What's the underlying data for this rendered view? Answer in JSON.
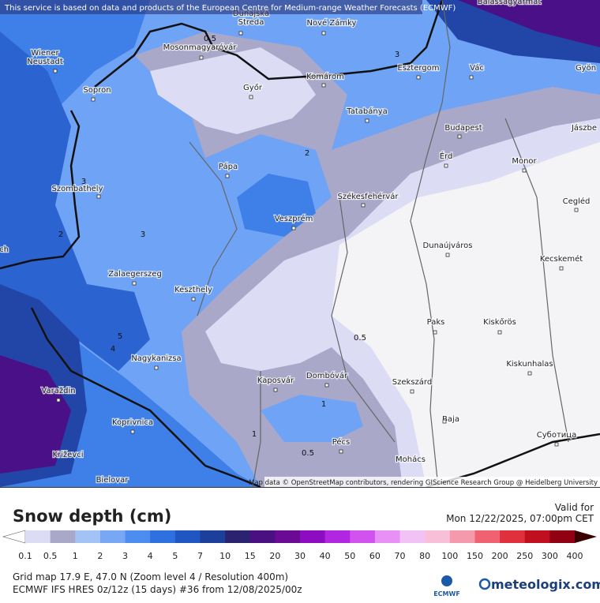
{
  "header": {
    "notice": "This service is based on data and products of the European Centre for Medium-range Weather Forecasts (ECMWF)"
  },
  "map": {
    "cities": [
      {
        "lines": [
          "Wiener",
          "Neustadt"
        ]
      },
      {
        "lines": [
          "Dunajská",
          "Streda"
        ]
      },
      {
        "lines": [
          "Nové Zámky"
        ]
      },
      {
        "lines": [
          "Balassagyarmat"
        ]
      },
      {
        "lines": [
          "Mosonmagyaróvár"
        ]
      },
      {
        "lines": [
          "Komárom"
        ]
      },
      {
        "lines": [
          "Esztergom"
        ]
      },
      {
        "lines": [
          "Vác"
        ]
      },
      {
        "lines": [
          "Gyön"
        ]
      },
      {
        "lines": [
          "Sopron"
        ]
      },
      {
        "lines": [
          "Győr"
        ]
      },
      {
        "lines": [
          "Tatabánya"
        ]
      },
      {
        "lines": [
          "Budapest"
        ]
      },
      {
        "lines": [
          "Jászbe"
        ]
      },
      {
        "lines": [
          "Érd"
        ]
      },
      {
        "lines": [
          "Monor"
        ]
      },
      {
        "lines": [
          "Pápa"
        ]
      },
      {
        "lines": [
          "Szombathely"
        ]
      },
      {
        "lines": [
          "Székesfehérvár"
        ]
      },
      {
        "lines": [
          "Cegléd"
        ]
      },
      {
        "lines": [
          "Veszprém"
        ]
      },
      {
        "lines": [
          "Dunaújváros"
        ]
      },
      {
        "lines": [
          "Kecskemét"
        ]
      },
      {
        "lines": [
          "Zalaegerszeg"
        ]
      },
      {
        "lines": [
          "Keszthely"
        ]
      },
      {
        "lines": [
          "Paks"
        ]
      },
      {
        "lines": [
          "Kiskőrös"
        ]
      },
      {
        "lines": [
          "Nagykanizsa"
        ]
      },
      {
        "lines": [
          "Kiskunhalas"
        ]
      },
      {
        "lines": [
          "Kaposvár"
        ]
      },
      {
        "lines": [
          "Dombóvár"
        ]
      },
      {
        "lines": [
          "Szekszárd"
        ]
      },
      {
        "lines": [
          "Varaždin"
        ]
      },
      {
        "lines": [
          "Baja"
        ]
      },
      {
        "lines": [
          "Koprivnica"
        ]
      },
      {
        "lines": [
          "Pécs"
        ]
      },
      {
        "lines": [
          "Суботица"
        ]
      },
      {
        "lines": [
          "Križevci"
        ]
      },
      {
        "lines": [
          "Mohács"
        ]
      },
      {
        "lines": [
          "Bielovar"
        ]
      },
      {
        "lines": [
          "ch"
        ]
      }
    ],
    "contour_labels": [
      "0.5",
      "3",
      "2",
      "3",
      "2",
      "3",
      "5",
      "4",
      "0.5",
      "1",
      "1",
      "0.5"
    ],
    "attribution": "Map data © OpenStreetMap contributors, rendering GIScience Research Group @ Heidelberg University"
  },
  "legend": {
    "title": "Snow depth (cm)",
    "valid_label": "Valid for",
    "valid_time": "Mon 12/22/2025, 07:00pm CET",
    "levels": [
      "0.1",
      "0.5",
      "1",
      "2",
      "3",
      "4",
      "5",
      "7",
      "10",
      "15",
      "20",
      "30",
      "40",
      "50",
      "60",
      "70",
      "80",
      "100",
      "150",
      "200",
      "250",
      "300",
      "400"
    ],
    "colors": [
      "#dcdcf5",
      "#a9a8c9",
      "#a3c2f5",
      "#78a8f5",
      "#4e8df0",
      "#2f70e0",
      "#1f56c2",
      "#1b3f9a",
      "#2b2370",
      "#4a0f80",
      "#6b0a95",
      "#8d0cc2",
      "#b126e0",
      "#d252f0",
      "#e890f5",
      "#f2c2f7",
      "#f7c0d8",
      "#f59aac",
      "#f06272",
      "#e0303e",
      "#c01020",
      "#900012"
    ]
  },
  "footer": {
    "grid": "Grid map 17.9 E, 47.0 N (Zoom level 4 / Resolution 400m)",
    "model": "ECMWF IFS HRES 0z/12z (15 days) #36 from  12/08/2025/00z",
    "ecmwf": "ECMWF",
    "brand": "meteologix.com"
  }
}
